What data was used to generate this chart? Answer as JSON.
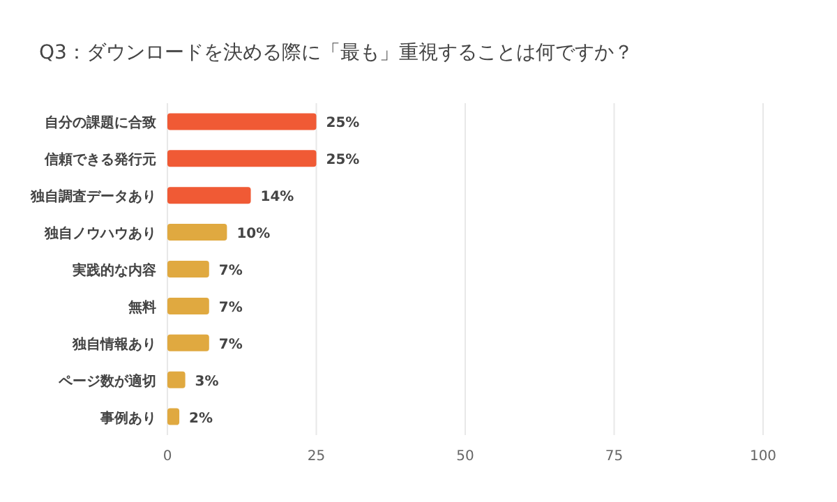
{
  "chart_data": {
    "type": "bar",
    "orientation": "horizontal",
    "title": "Q3：ダウンロードを決める際に「最も」重視することは何ですか？",
    "categories": [
      "自分の課題に合致",
      "信頼できる発行元",
      "独自調査データあり",
      "独自ノウハウあり",
      "実践的な内容",
      "無料",
      "独自情報あり",
      "ページ数が適切",
      "事例あり"
    ],
    "values": [
      25,
      25,
      14,
      10,
      7,
      7,
      7,
      3,
      2
    ],
    "value_labels": [
      "25%",
      "25%",
      "14%",
      "10%",
      "7%",
      "7%",
      "7%",
      "3%",
      "2%"
    ],
    "colors": [
      "#f05a35",
      "#f05a35",
      "#f05a35",
      "#e0a940",
      "#e0a940",
      "#e0a940",
      "#e0a940",
      "#e0a940",
      "#e0a940"
    ],
    "xlim": [
      0,
      100
    ],
    "xticks": [
      0,
      25,
      50,
      75,
      100
    ],
    "grid": "x"
  }
}
